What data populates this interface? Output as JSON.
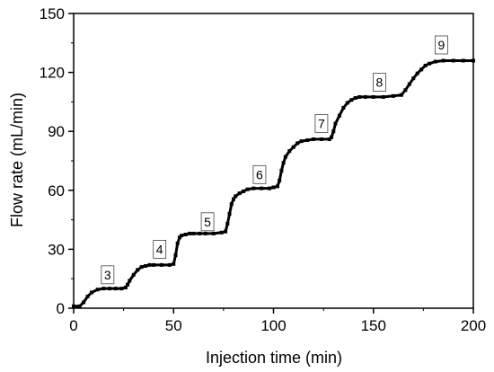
{
  "chart_data": {
    "type": "line",
    "xlabel": "Injection time (min)",
    "ylabel": "Flow rate (mL/min)",
    "xlim": [
      0,
      200
    ],
    "ylim": [
      0,
      150
    ],
    "x_ticks": [
      0,
      50,
      100,
      150,
      200
    ],
    "y_ticks": [
      0,
      30,
      60,
      90,
      120,
      150
    ],
    "grid": false,
    "marker": "square",
    "color": "#000000",
    "series": [
      {
        "x": [
          0,
          3,
          5,
          7,
          9,
          12,
          15,
          18,
          21,
          24,
          26,
          27,
          28,
          30,
          32,
          34,
          36,
          38,
          40,
          44,
          48,
          50,
          51,
          52,
          53,
          54,
          56,
          58,
          60,
          63,
          66,
          70,
          74,
          76,
          77,
          78,
          79,
          80,
          81,
          83,
          85,
          87,
          90,
          94,
          98,
          100,
          102,
          103,
          104,
          105,
          106,
          108,
          110,
          112,
          114,
          117,
          120,
          124,
          128,
          129,
          130,
          131,
          133,
          135,
          137,
          139,
          141,
          143,
          146,
          150,
          155,
          160,
          164,
          166,
          168,
          170,
          172,
          174,
          176,
          178,
          181,
          185,
          190,
          195,
          200
        ],
        "y": [
          1,
          1,
          3,
          6,
          8,
          9.5,
          10,
          10,
          10,
          10,
          10.5,
          12,
          14,
          17,
          19.5,
          21,
          21.5,
          22,
          22,
          22,
          22,
          22.5,
          27,
          33,
          36,
          37,
          37.5,
          38,
          38,
          38,
          38,
          38,
          38.5,
          39,
          43,
          48,
          53,
          55.5,
          57,
          58.5,
          59.5,
          60.5,
          61,
          61,
          61,
          61.5,
          62,
          65,
          70,
          74,
          77,
          80,
          82,
          84,
          85,
          85.5,
          86,
          86,
          86,
          87,
          90,
          94,
          98,
          102,
          104.5,
          106,
          107,
          107.5,
          107.5,
          107.5,
          107.5,
          108,
          108.5,
          111,
          114,
          117,
          119.5,
          121.5,
          123.5,
          124.5,
          125.5,
          126,
          126,
          126,
          126
        ]
      }
    ],
    "annotations": [
      {
        "label": "3",
        "x": 17,
        "y": 17
      },
      {
        "label": "4",
        "x": 43,
        "y": 30
      },
      {
        "label": "5",
        "x": 67,
        "y": 44
      },
      {
        "label": "6",
        "x": 93,
        "y": 68
      },
      {
        "label": "7",
        "x": 124,
        "y": 94
      },
      {
        "label": "8",
        "x": 153,
        "y": 115
      },
      {
        "label": "9",
        "x": 184,
        "y": 134
      }
    ]
  }
}
